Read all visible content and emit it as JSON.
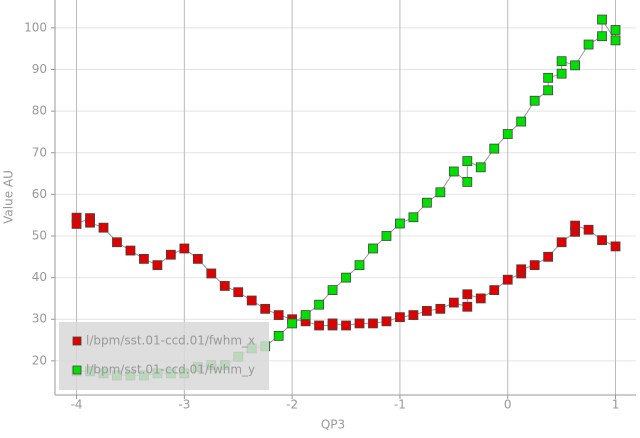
{
  "chart_data": {
    "type": "scatter",
    "x_label": "QP3",
    "y_label": "Value AU",
    "xlim": [
      -4.2,
      1.19
    ],
    "ylim": [
      11.8,
      106.7
    ],
    "xticks": [
      -4,
      -3,
      -2,
      -1,
      0,
      1
    ],
    "yticks": [
      20,
      30,
      40,
      50,
      60,
      70,
      80,
      90,
      100
    ],
    "grid": true,
    "legend": "lower left",
    "series": [
      {
        "name": "l/bpm/sst.01-ccd.01/fwhm_x",
        "color": "#e00000",
        "x": [
          -4,
          -4,
          -3.875,
          -3.875,
          -3.75,
          -3.625,
          -3.5,
          -3.375,
          -3.25,
          -3.125,
          -3,
          -2.875,
          -2.75,
          -2.625,
          -2.5,
          -2.375,
          -2.25,
          -2.125,
          -2,
          -1.875,
          -1.75,
          -1.625,
          -1.625,
          -1.5,
          -1.375,
          -1.25,
          -1.125,
          -1,
          -0.875,
          -0.75,
          -0.625,
          -0.5,
          -0.375,
          -0.375,
          -0.25,
          -0.125,
          0,
          0.125,
          0.125,
          0.25,
          0.375,
          0.5,
          0.625,
          0.625,
          0.75,
          0.875,
          1
        ],
        "values": [
          54.4,
          52.9,
          54.3,
          53.2,
          52,
          48.5,
          46.5,
          44.5,
          43,
          45.5,
          47,
          44.5,
          41,
          38,
          36.5,
          34.5,
          32.5,
          31,
          30,
          29.5,
          28.5,
          28.5,
          29,
          28.5,
          29,
          29,
          29.5,
          30.5,
          31,
          32,
          32.5,
          34,
          33,
          36,
          35,
          37,
          39.5,
          41,
          42,
          43,
          45,
          48.5,
          51,
          52.5,
          51.5,
          49,
          47.5
        ]
      },
      {
        "name": "l/bpm/sst.01-ccd.01/fwhm_y",
        "color": "#00e000",
        "x": [
          -4,
          -3.875,
          -3.75,
          -3.625,
          -3.5,
          -3.375,
          -3.25,
          -3.125,
          -3,
          -2.875,
          -2.75,
          -2.625,
          -2.5,
          -2.375,
          -2.25,
          -2.125,
          -2,
          -1.875,
          -1.75,
          -1.625,
          -1.5,
          -1.375,
          -1.25,
          -1.125,
          -1,
          -0.875,
          -0.75,
          -0.625,
          -0.5,
          -0.375,
          -0.375,
          -0.25,
          -0.125,
          0,
          0.125,
          0.25,
          0.375,
          0.375,
          0.5,
          0.5,
          0.625,
          0.75,
          0.875,
          0.875,
          1,
          1
        ],
        "values": [
          17.5,
          17.5,
          17,
          16.5,
          16.5,
          16.5,
          17,
          17,
          17,
          18.5,
          19,
          19,
          21,
          23,
          23.5,
          26,
          29,
          31,
          33.5,
          37,
          40,
          43,
          47,
          50,
          53,
          54.5,
          58,
          60.5,
          65.5,
          63,
          68,
          66.5,
          71,
          74.5,
          77.5,
          82.5,
          85,
          88,
          89,
          92,
          91,
          96,
          98,
          102,
          97,
          99.5
        ]
      }
    ]
  }
}
